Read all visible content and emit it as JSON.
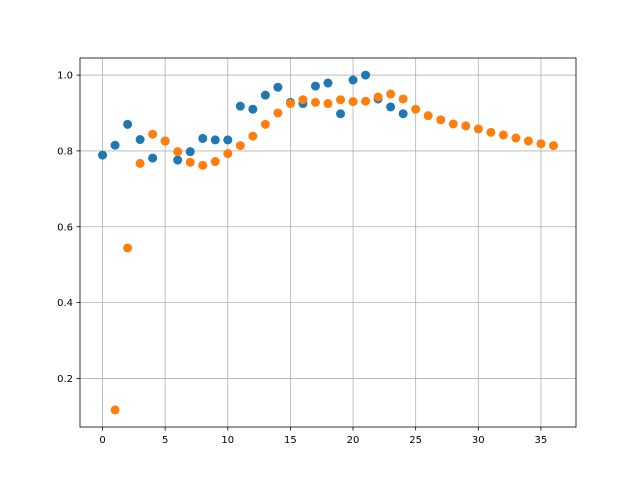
{
  "chart_data": {
    "type": "scatter",
    "title": "",
    "xlabel": "",
    "ylabel": "",
    "xlim": [
      -1.8,
      37.8
    ],
    "ylim": [
      0.072,
      1.045
    ],
    "xticks": [
      0,
      5,
      10,
      15,
      20,
      25,
      30,
      35
    ],
    "yticks": [
      0.2,
      0.4,
      0.6,
      0.8,
      1.0
    ],
    "xtick_labels": [
      "0",
      "5",
      "10",
      "15",
      "20",
      "25",
      "30",
      "35"
    ],
    "ytick_labels": [
      "0.2",
      "0.4",
      "0.6",
      "0.8",
      "1.0"
    ],
    "grid": true,
    "legend": "none",
    "series": [
      {
        "color": "#1f77b4",
        "x": [
          0,
          1,
          2,
          3,
          4,
          5,
          6,
          7,
          8,
          9,
          10,
          11,
          12,
          13,
          14,
          15,
          16,
          17,
          18,
          19,
          20,
          21,
          22,
          23,
          24
        ],
        "y": [
          0.789,
          0.815,
          0.87,
          0.83,
          0.781,
          0.826,
          0.776,
          0.798,
          0.833,
          0.829,
          0.829,
          0.918,
          0.91,
          0.947,
          0.968,
          0.928,
          0.925,
          0.971,
          0.979,
          0.898,
          0.987,
          1.0,
          0.937,
          0.916,
          0.898
        ]
      },
      {
        "color": "#ff7f0e",
        "x": [
          1,
          2,
          3,
          4,
          5,
          6,
          7,
          8,
          9,
          10,
          11,
          12,
          13,
          14,
          15,
          16,
          17,
          18,
          19,
          20,
          21,
          22,
          23,
          24,
          25,
          26,
          27,
          28,
          29,
          30,
          31,
          32,
          33,
          34,
          35,
          36
        ],
        "y": [
          0.117,
          0.544,
          0.767,
          0.844,
          0.826,
          0.798,
          0.77,
          0.762,
          0.772,
          0.793,
          0.814,
          0.839,
          0.87,
          0.9,
          0.925,
          0.935,
          0.928,
          0.925,
          0.935,
          0.93,
          0.931,
          0.942,
          0.95,
          0.937,
          0.91,
          0.893,
          0.882,
          0.871,
          0.866,
          0.858,
          0.849,
          0.842,
          0.834,
          0.826,
          0.819,
          0.814
        ]
      }
    ]
  }
}
